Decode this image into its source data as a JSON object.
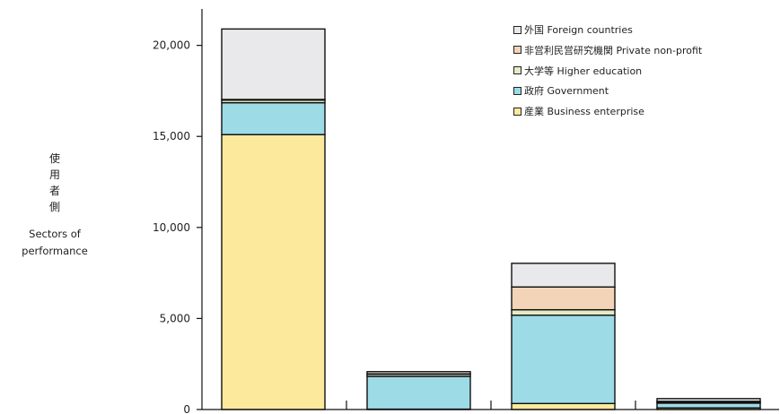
{
  "chart_data": {
    "type": "bar",
    "stacked": true,
    "title": "",
    "xlabel": "",
    "ylabel_jp": "使\n用\n者\n側",
    "ylabel_en": "Sectors of performance",
    "ylim": [
      0,
      22000
    ],
    "yticks": [
      0,
      5000,
      10000,
      15000,
      20000
    ],
    "ytick_labels": [
      "0",
      "5,000",
      "10,000",
      "15,000",
      "20,000"
    ],
    "categories": [
      "",
      "",
      "",
      ""
    ],
    "grid": false,
    "legend_position": "top-right",
    "series": [
      {
        "name": "産業 Business enterprise",
        "color": "#fde99c",
        "values": [
          15100,
          20,
          330,
          90
        ]
      },
      {
        "name": "政府 Government",
        "color": "#9ddbe7",
        "values": [
          1750,
          1800,
          4850,
          260
        ]
      },
      {
        "name": "大学等 Higher education",
        "color": "#e4ebc4",
        "values": [
          140,
          120,
          300,
          60
        ]
      },
      {
        "name": "非営利民営研究機関 Private non-profit",
        "color": "#f3d4b8",
        "values": [
          40,
          20,
          1250,
          40
        ]
      },
      {
        "name": "外国 Foreign countries",
        "color": "#e9e9ec",
        "values": [
          3870,
          120,
          1300,
          150
        ]
      }
    ]
  }
}
